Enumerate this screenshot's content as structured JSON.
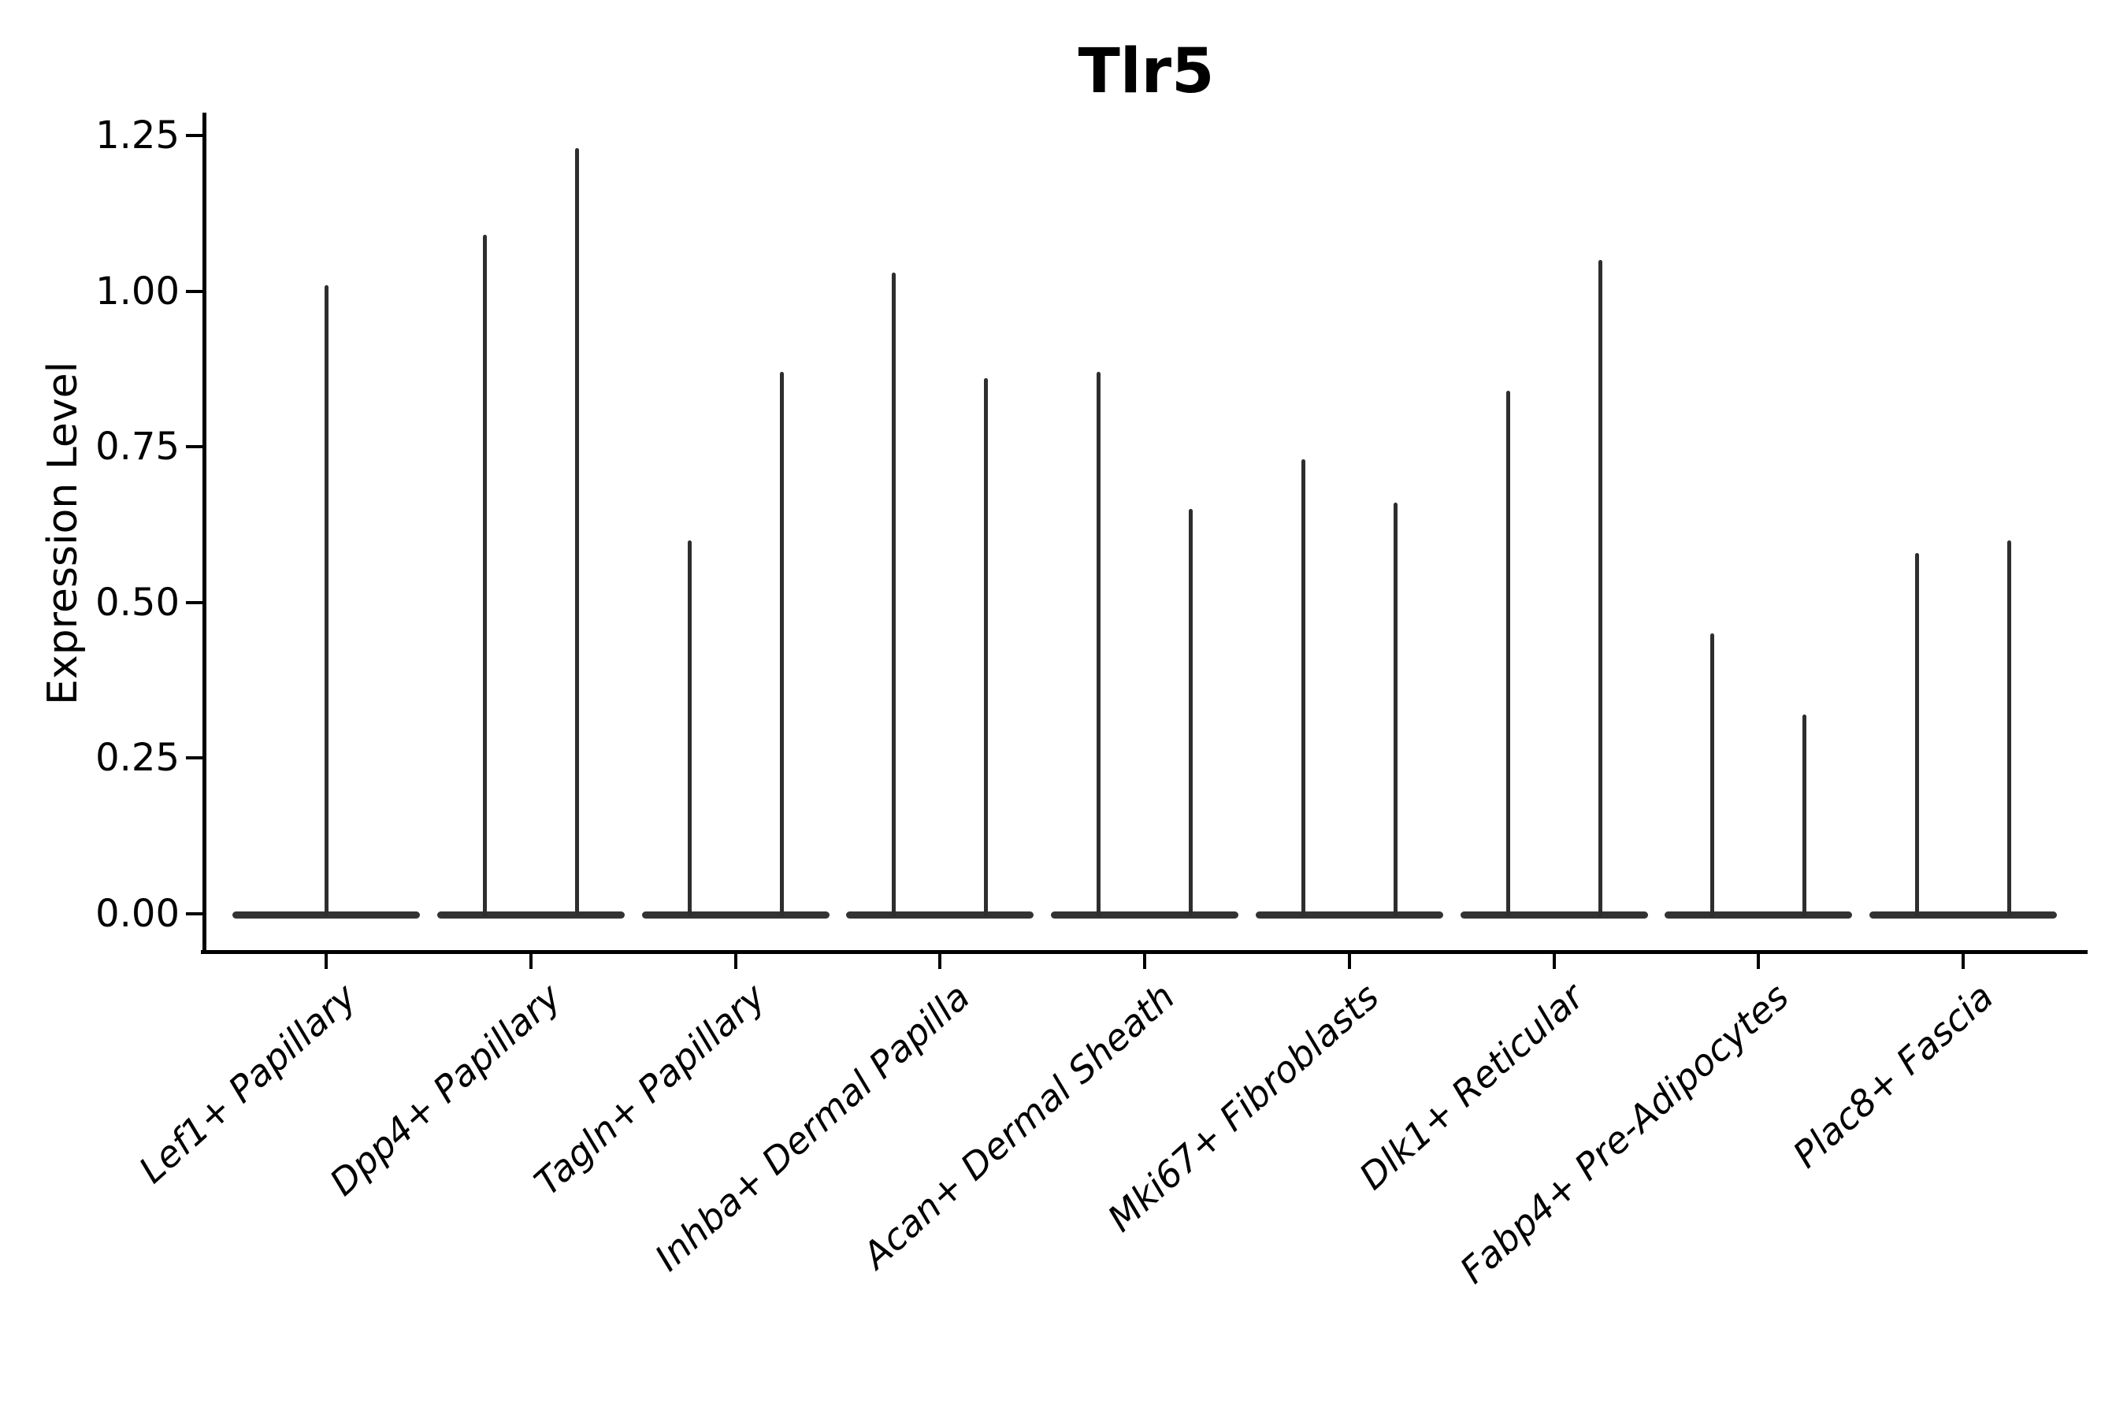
{
  "title": "Tlr5",
  "ylabel": "Expression Level",
  "ink_color": "#2e2e2e",
  "axis_color": "#000000",
  "background_color": "#ffffff",
  "chart_data": {
    "type": "violin",
    "title": "Tlr5",
    "xlabel": "",
    "ylabel": "Expression Level",
    "ylim": [
      -0.06,
      1.31
    ],
    "grid": false,
    "legend": "none",
    "ytick_labels": [
      "0.00",
      "0.25",
      "0.50",
      "0.75",
      "1.00",
      "1.25"
    ],
    "ytick_values": [
      0.0,
      0.25,
      0.5,
      0.75,
      1.0,
      1.25
    ],
    "categories": [
      "Lef1+ Papillary",
      "Dpp4+ Papillary",
      "Tagln+ Papillary",
      "Inhba+ Dermal Papilla",
      "Acan+ Dermal Sheath",
      "Mki67+ Fibroblasts",
      "Dlk1+ Reticular",
      "Fabp4+ Pre-Adipocytes",
      "Plac8+ Fascia"
    ],
    "violins": [
      {
        "category": "Lef1+ Papillary",
        "max_expression": [
          1.01
        ]
      },
      {
        "category": "Dpp4+ Papillary",
        "max_expression": [
          1.09,
          1.23
        ]
      },
      {
        "category": "Tagln+ Papillary",
        "max_expression": [
          0.6,
          0.87
        ]
      },
      {
        "category": "Inhba+ Dermal Papilla",
        "max_expression": [
          1.03,
          0.86
        ]
      },
      {
        "category": "Acan+ Dermal Sheath",
        "max_expression": [
          0.87,
          0.65
        ]
      },
      {
        "category": "Mki67+ Fibroblasts",
        "max_expression": [
          0.73,
          0.66
        ]
      },
      {
        "category": "Dlk1+ Reticular",
        "max_expression": [
          0.84,
          1.05
        ]
      },
      {
        "category": "Fabp4+ Pre-Adipocytes",
        "max_expression": [
          0.45,
          0.32
        ]
      },
      {
        "category": "Plac8+ Fascia",
        "max_expression": [
          0.58,
          0.6
        ]
      }
    ],
    "layout_hints": {
      "bulk_of_distribution_at": 0.0,
      "x_label_rotation_deg": 42,
      "x_label_style": "italic",
      "violins_per_category": [
        1,
        2,
        2,
        2,
        2,
        2,
        2,
        2,
        2
      ]
    }
  }
}
